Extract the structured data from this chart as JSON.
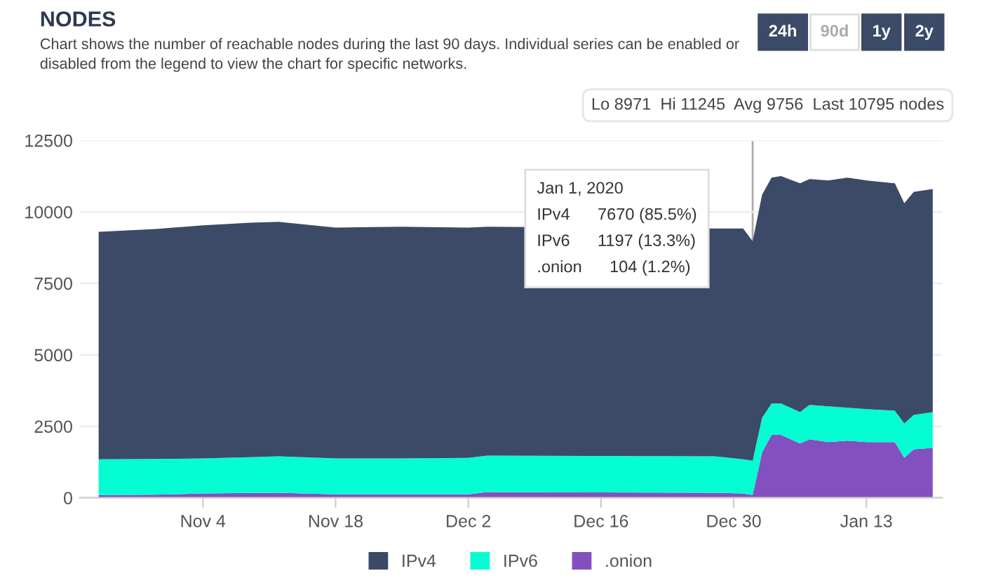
{
  "chart_data": {
    "type": "area",
    "stacked": true,
    "title": "NODES",
    "subtitle": "Chart shows the number of reachable nodes during the last 90 days. Individual series can be enabled or\ndisabled from the legend to view the chart for specific networks.",
    "x": [
      "2019-10-24",
      "2019-10-30",
      "2019-11-04",
      "2019-11-09",
      "2019-11-12",
      "2019-11-18",
      "2019-11-25",
      "2019-12-02",
      "2019-12-04",
      "2019-12-28",
      "2019-12-31",
      "2020-01-01",
      "2020-01-02",
      "2020-01-03",
      "2020-01-04",
      "2020-01-06",
      "2020-01-07",
      "2020-01-09",
      "2020-01-11",
      "2020-01-13",
      "2020-01-16",
      "2020-01-17",
      "2020-01-18",
      "2020-01-20"
    ],
    "series": [
      {
        "name": ".onion",
        "color": "#8350bf",
        "values": [
          100,
          110,
          150,
          170,
          180,
          120,
          120,
          120,
          200,
          180,
          150,
          100,
          1600,
          2200,
          2200,
          1900,
          2050,
          1950,
          2000,
          1950,
          1950,
          1400,
          1700,
          1750
        ]
      },
      {
        "name": "IPv6",
        "color": "#05fdd4",
        "values": [
          1250,
          1250,
          1230,
          1250,
          1270,
          1260,
          1260,
          1280,
          1280,
          1270,
          1200,
          1200,
          1200,
          1100,
          1100,
          1100,
          1200,
          1250,
          1150,
          1150,
          1100,
          1200,
          1200,
          1250
        ]
      },
      {
        "name": "IPv4",
        "color": "#3b4a66",
        "values": [
          7950,
          8040,
          8150,
          8200,
          8200,
          8070,
          8100,
          8050,
          8000,
          7970,
          8070,
          7670,
          7800,
          7900,
          7950,
          8000,
          7900,
          7900,
          8050,
          8000,
          7950,
          7700,
          7800,
          7800
        ]
      }
    ],
    "xlim": [
      "2019-10-22",
      "2020-01-21"
    ],
    "xticks": [
      {
        "value": "2019-11-04",
        "label": "Nov 4"
      },
      {
        "value": "2019-11-18",
        "label": "Nov 18"
      },
      {
        "value": "2019-12-02",
        "label": "Dec 2"
      },
      {
        "value": "2019-12-16",
        "label": "Dec 16"
      },
      {
        "value": "2019-12-30",
        "label": "Dec 30"
      },
      {
        "value": "2020-01-13",
        "label": "Jan 13"
      }
    ],
    "ylim": [
      0,
      12500
    ],
    "yticks": [
      0,
      2500,
      5000,
      7500,
      10000,
      12500
    ],
    "grid": "y",
    "legend": "bottom",
    "ref_lines": [
      {
        "axis": "x",
        "value": "2020-01-01",
        "color": "#aaaaaa"
      }
    ],
    "annotations": [
      "24h",
      "90d",
      "1y",
      "2y",
      "Lo 8971  Hi 11245  Avg 9756  Last 10795 nodes",
      "Jan 1, 2020",
      "IPv4      7670 (85.5%)",
      "IPv6      1197 (13.3%)",
      ".onion      104 (1.2%)"
    ]
  }
}
